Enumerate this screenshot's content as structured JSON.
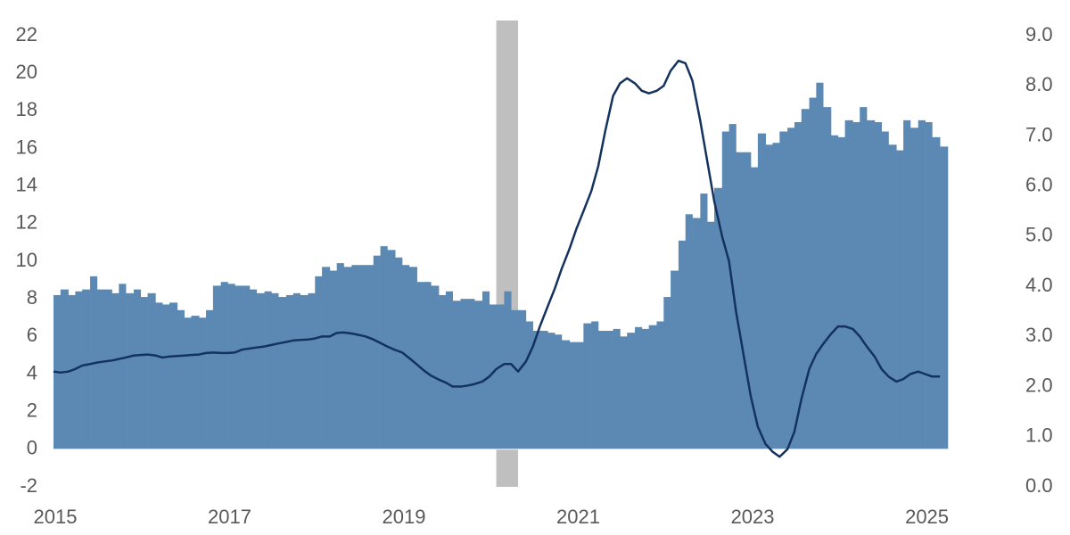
{
  "chart_data": {
    "type": "bar",
    "x": [
      2015,
      2015.08,
      2015.17,
      2015.25,
      2015.33,
      2015.42,
      2015.5,
      2015.58,
      2015.67,
      2015.75,
      2015.83,
      2015.92,
      2016,
      2016.08,
      2016.17,
      2016.25,
      2016.33,
      2016.42,
      2016.5,
      2016.58,
      2016.67,
      2016.75,
      2016.83,
      2016.92,
      2017,
      2017.08,
      2017.17,
      2017.25,
      2017.33,
      2017.42,
      2017.5,
      2017.58,
      2017.67,
      2017.75,
      2017.83,
      2017.92,
      2018,
      2018.08,
      2018.17,
      2018.25,
      2018.33,
      2018.42,
      2018.5,
      2018.58,
      2018.67,
      2018.75,
      2018.83,
      2018.92,
      2019,
      2019.08,
      2019.17,
      2019.25,
      2019.33,
      2019.42,
      2019.5,
      2019.58,
      2019.67,
      2019.75,
      2019.83,
      2019.92,
      2020,
      2020.08,
      2020.17,
      2020.25,
      2020.33,
      2020.42,
      2020.5,
      2020.58,
      2020.67,
      2020.75,
      2020.83,
      2020.92,
      2021,
      2021.08,
      2021.17,
      2021.25,
      2021.33,
      2021.42,
      2021.5,
      2021.58,
      2021.67,
      2021.75,
      2021.83,
      2021.92,
      2022,
      2022.08,
      2022.17,
      2022.25,
      2022.33,
      2022.42,
      2022.5,
      2022.58,
      2022.67,
      2022.75,
      2022.83,
      2022.92,
      2023,
      2023.08,
      2023.17,
      2023.25,
      2023.33,
      2023.42,
      2023.5,
      2023.58,
      2023.67,
      2023.75,
      2023.83,
      2023.92,
      2024,
      2024.08,
      2024.17,
      2024.25,
      2024.33,
      2024.42,
      2024.5,
      2024.58,
      2024.67,
      2024.75,
      2024.83,
      2024.92,
      2025,
      2025.08,
      2025.17
    ],
    "series": [
      {
        "type": "bar",
        "color": "#5b89b4",
        "values": [
          8.2,
          8.5,
          8.2,
          8.4,
          8.5,
          9.2,
          8.5,
          8.5,
          8.3,
          8.8,
          8.3,
          8.5,
          8.1,
          8.3,
          7.8,
          7.7,
          7.8,
          7.4,
          7.0,
          7.1,
          7.0,
          7.4,
          8.7,
          8.9,
          8.8,
          8.7,
          8.7,
          8.5,
          8.3,
          8.4,
          8.3,
          8.1,
          8.2,
          8.3,
          8.2,
          8.3,
          9.2,
          9.7,
          9.5,
          9.9,
          9.7,
          9.8,
          9.8,
          9.8,
          10.3,
          10.8,
          10.6,
          10.2,
          9.8,
          9.7,
          8.9,
          8.9,
          8.7,
          8.2,
          8.4,
          7.9,
          8.0,
          8.0,
          7.9,
          8.4,
          7.7,
          7.7,
          8.4,
          7.4,
          7.4,
          6.8,
          6.3,
          6.3,
          6.2,
          6.1,
          5.8,
          5.7,
          5.7,
          6.7,
          6.8,
          6.3,
          6.3,
          6.4,
          6.0,
          6.2,
          6.5,
          6.4,
          6.6,
          6.8,
          8.1,
          9.5,
          11.1,
          12.5,
          12.3,
          13.6,
          12.1,
          13.9,
          16.9,
          17.3,
          15.8,
          15.8,
          15.0,
          16.8,
          16.2,
          16.3,
          16.9,
          17.1,
          17.4,
          18.1,
          18.7,
          19.5,
          18.2,
          16.7,
          16.6,
          17.5,
          17.4,
          18.2,
          17.5,
          17.4,
          16.9,
          16.2,
          15.9,
          17.5,
          17.1,
          17.5,
          17.4,
          16.6,
          16.1
        ]
      },
      {
        "type": "line",
        "axis": "y2",
        "color": "#14325e",
        "values": [
          2.3,
          2.28,
          2.3,
          2.35,
          2.42,
          2.45,
          2.48,
          2.5,
          2.52,
          2.55,
          2.58,
          2.62,
          2.63,
          2.64,
          2.62,
          2.58,
          2.6,
          2.61,
          2.62,
          2.63,
          2.64,
          2.67,
          2.68,
          2.67,
          2.67,
          2.68,
          2.74,
          2.76,
          2.78,
          2.8,
          2.83,
          2.86,
          2.89,
          2.92,
          2.93,
          2.94,
          2.96,
          3.0,
          3.0,
          3.07,
          3.08,
          3.06,
          3.03,
          3.0,
          2.94,
          2.87,
          2.8,
          2.73,
          2.68,
          2.57,
          2.44,
          2.32,
          2.22,
          2.14,
          2.08,
          2.0,
          2.0,
          2.02,
          2.05,
          2.1,
          2.2,
          2.35,
          2.45,
          2.45,
          2.3,
          2.5,
          2.8,
          3.2,
          3.6,
          3.95,
          4.35,
          4.75,
          5.15,
          5.5,
          5.9,
          6.4,
          7.1,
          7.8,
          8.05,
          8.15,
          8.05,
          7.9,
          7.85,
          7.9,
          8.0,
          8.3,
          8.5,
          8.45,
          8.1,
          7.3,
          6.5,
          5.7,
          5.0,
          4.5,
          3.5,
          2.6,
          1.8,
          1.2,
          0.85,
          0.7,
          0.6,
          0.75,
          1.1,
          1.75,
          2.35,
          2.65,
          2.85,
          3.05,
          3.2,
          3.2,
          3.15,
          3.0,
          2.8,
          2.6,
          2.35,
          2.2,
          2.1,
          2.15,
          2.25,
          2.3,
          2.25,
          2.2,
          2.2
        ]
      }
    ],
    "shaded": [
      [
        2020.08,
        2020.33
      ]
    ],
    "shade_color": "#bfbfbf",
    "xlim": [
      2015,
      2025.25
    ],
    "xticks": [
      2015,
      2017,
      2019,
      2021,
      2023,
      2025
    ],
    "ylim": [
      -2,
      22
    ],
    "yticks": [
      -2,
      0,
      2,
      4,
      6,
      8,
      10,
      12,
      14,
      16,
      18,
      20,
      22
    ],
    "y2lim": [
      0,
      9
    ],
    "y2ticks": [
      {
        "value": 0,
        "label": "0.0"
      },
      {
        "value": 1,
        "label": "1.0"
      },
      {
        "value": 2,
        "label": "2.0"
      },
      {
        "value": 3,
        "label": "3.0"
      },
      {
        "value": 4,
        "label": "4.0"
      },
      {
        "value": 5,
        "label": "5.0"
      },
      {
        "value": 6,
        "label": "6.0"
      },
      {
        "value": 7,
        "label": "7.0"
      },
      {
        "value": 8,
        "label": "8.0"
      },
      {
        "value": 9,
        "label": "9.0"
      }
    ]
  }
}
